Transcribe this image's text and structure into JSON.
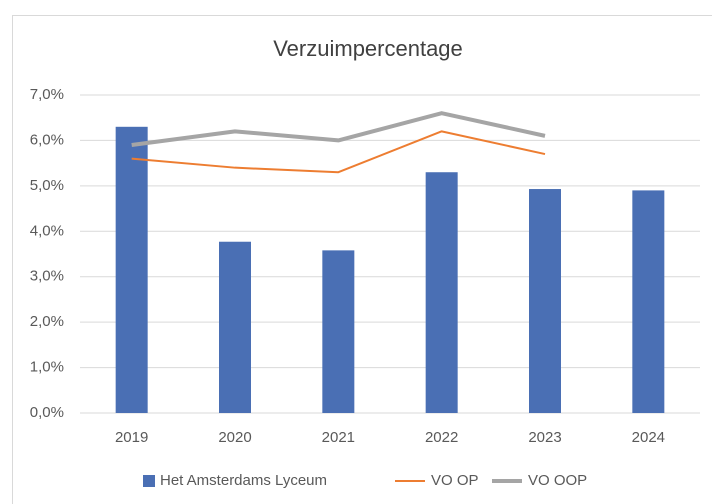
{
  "chart_data": {
    "type": "combo",
    "title": "Verzuimpercentage",
    "categories": [
      "2019",
      "2020",
      "2021",
      "2022",
      "2023",
      "2024"
    ],
    "series": [
      {
        "name": "Het Amsterdams Lyceum",
        "type": "bar",
        "color": "#4a6fb4",
        "values": [
          6.3,
          3.77,
          3.58,
          5.3,
          4.93,
          4.9
        ]
      },
      {
        "name": "VO OP",
        "type": "line",
        "color": "#ed7d31",
        "values": [
          5.6,
          5.4,
          5.3,
          6.2,
          5.7,
          null
        ]
      },
      {
        "name": "VO OOP",
        "type": "line",
        "color": "#a5a5a5",
        "values": [
          5.9,
          6.2,
          6.0,
          6.6,
          6.1,
          null
        ]
      }
    ],
    "ylim": [
      0,
      7
    ],
    "yticks": [
      {
        "value": 0,
        "label": "0,0%"
      },
      {
        "value": 1,
        "label": "1,0%"
      },
      {
        "value": 2,
        "label": "2,0%"
      },
      {
        "value": 3,
        "label": "3,0%"
      },
      {
        "value": 4,
        "label": "4,0%"
      },
      {
        "value": 5,
        "label": "5,0%"
      },
      {
        "value": 6,
        "label": "6,0%"
      },
      {
        "value": 7,
        "label": "7,0%"
      }
    ],
    "grid": true,
    "legend": "bottom"
  }
}
